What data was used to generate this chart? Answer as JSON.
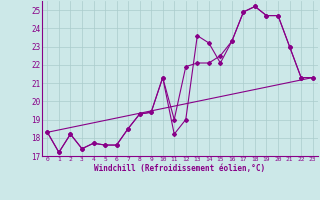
{
  "xlabel": "Windchill (Refroidissement éolien,°C)",
  "bg_color": "#cce8e8",
  "grid_color": "#aacccc",
  "line_color": "#880088",
  "xlim": [
    -0.5,
    23.5
  ],
  "ylim": [
    17.0,
    25.5
  ],
  "xticks": [
    0,
    1,
    2,
    3,
    4,
    5,
    6,
    7,
    8,
    9,
    10,
    11,
    12,
    13,
    14,
    15,
    16,
    17,
    18,
    19,
    20,
    21,
    22,
    23
  ],
  "yticks": [
    17,
    18,
    19,
    20,
    21,
    22,
    23,
    24,
    25
  ],
  "line1_x": [
    0,
    1,
    2,
    3,
    4,
    5,
    6,
    7,
    8,
    9,
    10,
    11,
    12,
    13,
    14,
    15,
    16,
    17,
    18,
    19,
    20,
    21,
    22,
    23
  ],
  "line1_y": [
    18.3,
    17.2,
    18.2,
    17.4,
    17.7,
    17.6,
    17.6,
    18.5,
    19.3,
    19.4,
    21.3,
    18.2,
    19.0,
    23.6,
    23.2,
    22.1,
    23.3,
    24.9,
    25.2,
    24.7,
    24.7,
    23.0,
    21.3,
    21.3
  ],
  "line2_x": [
    0,
    1,
    2,
    3,
    4,
    5,
    6,
    7,
    8,
    9,
    10,
    11,
    12,
    13,
    14,
    15,
    16,
    17,
    18,
    19,
    20,
    21,
    22,
    23
  ],
  "line2_y": [
    18.3,
    17.2,
    18.2,
    17.4,
    17.7,
    17.6,
    17.6,
    18.5,
    19.3,
    19.4,
    21.3,
    19.0,
    21.9,
    22.1,
    22.1,
    22.5,
    23.3,
    24.9,
    25.2,
    24.7,
    24.7,
    23.0,
    21.3,
    21.3
  ],
  "line3_x": [
    0,
    23
  ],
  "line3_y": [
    18.3,
    21.3
  ]
}
